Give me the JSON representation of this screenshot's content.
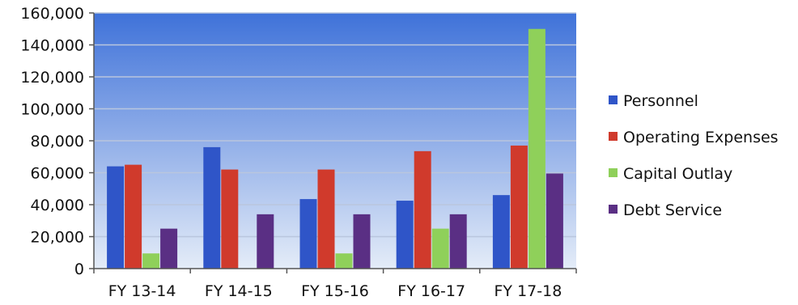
{
  "chart_data": {
    "type": "bar",
    "categories": [
      "FY 13-14",
      "FY 14-15",
      "FY 15-16",
      "FY 16-17",
      "FY 17-18"
    ],
    "series": [
      {
        "name": "Personnel",
        "color": "#2f55c8",
        "values": [
          64000,
          76000,
          43500,
          42500,
          46000
        ]
      },
      {
        "name": "Operating Expenses",
        "color": "#d03a2c",
        "values": [
          65000,
          62000,
          62000,
          73500,
          77000
        ]
      },
      {
        "name": "Capital Outlay",
        "color": "#8fd05a",
        "values": [
          9500,
          0,
          9500,
          25000,
          150000
        ]
      },
      {
        "name": "Debt Service",
        "color": "#5a2f84",
        "values": [
          25000,
          34000,
          34000,
          34000,
          59500
        ]
      }
    ],
    "ylim": [
      0,
      160000
    ],
    "y_ticks": [
      "0",
      "20,000",
      "40,000",
      "60,000",
      "80,000",
      "100,000",
      "120,000",
      "140,000",
      "160,000"
    ],
    "y_tick_values": [
      0,
      20000,
      40000,
      60000,
      80000,
      100000,
      120000,
      140000,
      160000
    ],
    "grid": true,
    "legend_position": "right",
    "plot_background": {
      "top": "#3f72d9",
      "bottom": "#e4ecf8"
    }
  }
}
